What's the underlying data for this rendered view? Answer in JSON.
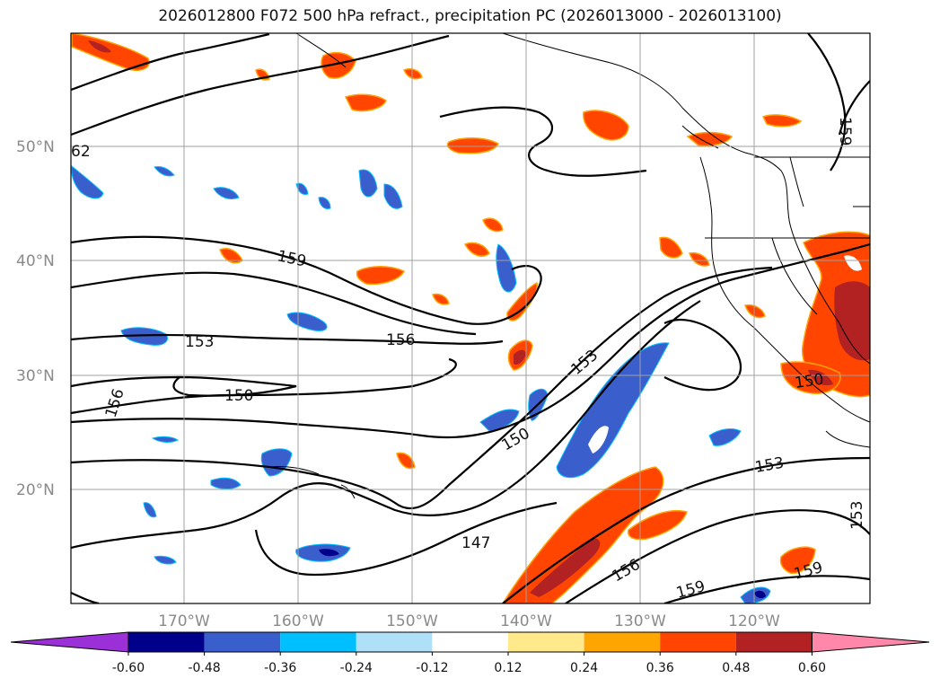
{
  "title": "2026012800 F072 500 hPa refract., precipitation PC (2026013000 - 2026013100)",
  "lat_labels": [
    "50°N",
    "40°N",
    "30°N",
    "20°N"
  ],
  "lon_labels": [
    "170°W",
    "160°W",
    "150°W",
    "140°W",
    "130°W",
    "120°W"
  ],
  "contour_labels": [
    "62",
    "159",
    "153",
    "156",
    "150",
    "156",
    "153",
    "150",
    "147",
    "153",
    "156",
    "159",
    "159",
    "150",
    "159",
    "153"
  ],
  "colorbar": {
    "ticks": [
      "-0.60",
      "-0.48",
      "-0.36",
      "-0.24",
      "-0.12",
      "0.12",
      "0.24",
      "0.36",
      "0.48",
      "0.60"
    ],
    "colors": [
      "#9b30d8",
      "#00008b",
      "#3a5fcd",
      "#00bfff",
      "#b0e0f8",
      "#ffffff",
      "#ffe98a",
      "#ffa500",
      "#ff4500",
      "#b22222",
      "#ff88aa"
    ]
  },
  "colors": {
    "frame": "#000000",
    "grid": "#a0a0a0",
    "coast": "#000000",
    "contour": "#000000"
  }
}
